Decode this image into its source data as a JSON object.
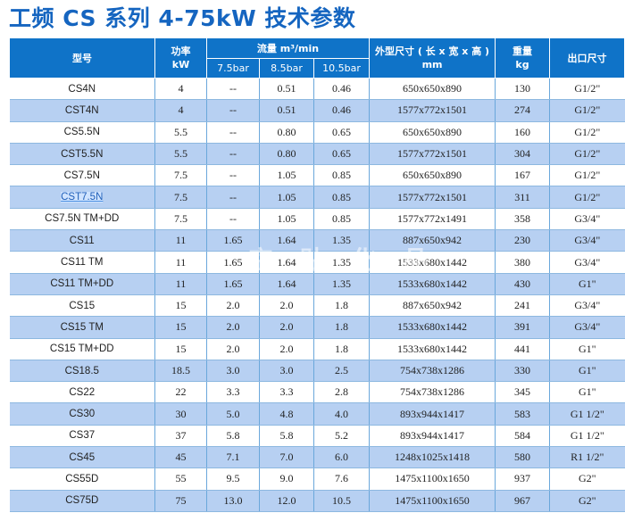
{
  "title": "工频 CS 系列 4-75kW 技术参数",
  "watermark": "空 贴 化 品",
  "colors": {
    "title": "#1565c0",
    "header": "#0f73c8",
    "stripe": "#b7d0f2"
  },
  "headers": {
    "model": "型号",
    "power": "功率",
    "power_unit": "kW",
    "flow": "流量 m³/min",
    "flow_7_5": "7.5bar",
    "flow_8_5": "8.5bar",
    "flow_10_5": "10.5bar",
    "dim": "外型尺寸 ( 长 x 宽 x 高 )",
    "dim_unit": "mm",
    "weight": "重量",
    "weight_unit": "kg",
    "outlet": "出口尺寸"
  },
  "rows": [
    {
      "model": "CS4N",
      "power": "4",
      "f75": "--",
      "f85": "0.51",
      "f105": "0.46",
      "dim": "650x650x890",
      "weight": "130",
      "outlet": "G1/2\""
    },
    {
      "model": "CST4N",
      "power": "4",
      "f75": "--",
      "f85": "0.51",
      "f105": "0.46",
      "dim": "1577x772x1501",
      "weight": "274",
      "outlet": "G1/2\""
    },
    {
      "model": "CS5.5N",
      "power": "5.5",
      "f75": "--",
      "f85": "0.80",
      "f105": "0.65",
      "dim": "650x650x890",
      "weight": "160",
      "outlet": "G1/2\""
    },
    {
      "model": "CST5.5N",
      "power": "5.5",
      "f75": "--",
      "f85": "0.80",
      "f105": "0.65",
      "dim": "1577x772x1501",
      "weight": "304",
      "outlet": "G1/2\""
    },
    {
      "model": "CS7.5N",
      "power": "7.5",
      "f75": "--",
      "f85": "1.05",
      "f105": "0.85",
      "dim": "650x650x890",
      "weight": "167",
      "outlet": "G1/2\""
    },
    {
      "model": "CST7.5N",
      "power": "7.5",
      "f75": "--",
      "f85": "1.05",
      "f105": "0.85",
      "dim": "1577x772x1501",
      "weight": "311",
      "outlet": "G1/2\""
    },
    {
      "model": "CS7.5N TM+DD",
      "power": "7.5",
      "f75": "--",
      "f85": "1.05",
      "f105": "0.85",
      "dim": "1577x772x1491",
      "weight": "358",
      "outlet": "G3/4\""
    },
    {
      "model": "CS11",
      "power": "11",
      "f75": "1.65",
      "f85": "1.64",
      "f105": "1.35",
      "dim": "887x650x942",
      "weight": "230",
      "outlet": "G3/4\""
    },
    {
      "model": "CS11 TM",
      "power": "11",
      "f75": "1.65",
      "f85": "1.64",
      "f105": "1.35",
      "dim": "1533x680x1442",
      "weight": "380",
      "outlet": "G3/4\""
    },
    {
      "model": "CS11 TM+DD",
      "power": "11",
      "f75": "1.65",
      "f85": "1.64",
      "f105": "1.35",
      "dim": "1533x680x1442",
      "weight": "430",
      "outlet": "G1\""
    },
    {
      "model": "CS15",
      "power": "15",
      "f75": "2.0",
      "f85": "2.0",
      "f105": "1.8",
      "dim": "887x650x942",
      "weight": "241",
      "outlet": "G3/4\""
    },
    {
      "model": "CS15 TM",
      "power": "15",
      "f75": "2.0",
      "f85": "2.0",
      "f105": "1.8",
      "dim": "1533x680x1442",
      "weight": "391",
      "outlet": "G3/4\""
    },
    {
      "model": "CS15 TM+DD",
      "power": "15",
      "f75": "2.0",
      "f85": "2.0",
      "f105": "1.8",
      "dim": "1533x680x1442",
      "weight": "441",
      "outlet": "G1\""
    },
    {
      "model": "CS18.5",
      "power": "18.5",
      "f75": "3.0",
      "f85": "3.0",
      "f105": "2.5",
      "dim": "754x738x1286",
      "weight": "330",
      "outlet": "G1\""
    },
    {
      "model": "CS22",
      "power": "22",
      "f75": "3.3",
      "f85": "3.3",
      "f105": "2.8",
      "dim": "754x738x1286",
      "weight": "345",
      "outlet": "G1\""
    },
    {
      "model": "CS30",
      "power": "30",
      "f75": "5.0",
      "f85": "4.8",
      "f105": "4.0",
      "dim": "893x944x1417",
      "weight": "583",
      "outlet": "G1 1/2\""
    },
    {
      "model": "CS37",
      "power": "37",
      "f75": "5.8",
      "f85": "5.8",
      "f105": "5.2",
      "dim": "893x944x1417",
      "weight": "584",
      "outlet": "G1 1/2\""
    },
    {
      "model": "CS45",
      "power": "45",
      "f75": "7.1",
      "f85": "7.0",
      "f105": "6.0",
      "dim": "1248x1025x1418",
      "weight": "580",
      "outlet": "R1 1/2\""
    },
    {
      "model": "CS55D",
      "power": "55",
      "f75": "9.5",
      "f85": "9.0",
      "f105": "7.6",
      "dim": "1475x1100x1650",
      "weight": "937",
      "outlet": "G2\""
    },
    {
      "model": "CS75D",
      "power": "75",
      "f75": "13.0",
      "f85": "12.0",
      "f105": "10.5",
      "dim": "1475x1100x1650",
      "weight": "967",
      "outlet": "G2\""
    }
  ]
}
